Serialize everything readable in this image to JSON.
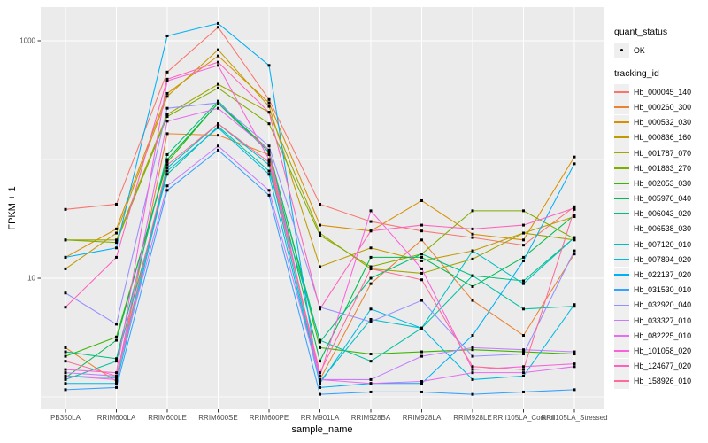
{
  "chart_data": {
    "type": "line",
    "title": "",
    "xlabel": "sample_name",
    "ylabel": "FPKM + 1",
    "y_scale": "log10",
    "ylim": [
      0.72,
      1870
    ],
    "grid": true,
    "legend_position": "right",
    "x_categories": [
      "PB350LA",
      "RRIM600LA",
      "RRIM600LE",
      "RRIM600SE",
      "RRIM600PE",
      "RRIM901LA",
      "RRIM928BA",
      "RRIM928LA",
      "RRIM928LE",
      "RRII105LA_Control",
      "RRII105LA_Stressed"
    ],
    "y_ticks": [
      {
        "label": "1000",
        "value": 1000
      },
      {
        "label": "10",
        "value": 10
      }
    ],
    "y_gridlines_major": [
      1000,
      10
    ],
    "y_gridlines_minor": [
      100,
      1
    ],
    "point_marker": {
      "shape": "square",
      "color": "#000000",
      "size": 3
    },
    "series": [
      {
        "name": "Hb_000045_140",
        "color": "#F8766D",
        "values": [
          38,
          42,
          545,
          1300,
          320,
          42,
          30,
          25,
          22,
          19,
          40
        ]
      },
      {
        "name": "Hb_000260_300",
        "color": "#EA8331",
        "values": [
          2.6,
          1.35,
          165,
          160,
          110,
          1.4,
          9,
          21,
          6.5,
          3.3,
          16
        ]
      },
      {
        "name": "Hb_000532_030",
        "color": "#D89000",
        "values": [
          15,
          26,
          360,
          745,
          300,
          28,
          25,
          45,
          23.5,
          21,
          105
        ]
      },
      {
        "name": "Hb_000836_160",
        "color": "#C09B00",
        "values": [
          12,
          24,
          340,
          840,
          280,
          12.5,
          18,
          14,
          17,
          24,
          33
        ]
      },
      {
        "name": "Hb_001787_070",
        "color": "#A3A500",
        "values": [
          21,
          21,
          240,
          430,
          250,
          24,
          12,
          11,
          14.5,
          24,
          21
        ]
      },
      {
        "name": "Hb_001863_270",
        "color": "#7CAE00",
        "values": [
          21,
          20,
          230,
          400,
          200,
          23,
          12.5,
          16,
          37,
          37,
          21.5
        ]
      },
      {
        "name": "Hb_002053_030",
        "color": "#39B600",
        "values": [
          2.2,
          3.2,
          95,
          300,
          120,
          2.6,
          2.3,
          2.4,
          2.5,
          2.4,
          2.3
        ]
      },
      {
        "name": "Hb_005976_040",
        "color": "#00BB4E",
        "values": [
          1.45,
          3,
          100,
          297,
          115,
          2,
          15,
          15,
          8.5,
          15,
          34
        ]
      },
      {
        "name": "Hb_006043_020",
        "color": "#00BF7D",
        "values": [
          2.4,
          2.1,
          110,
          310,
          115,
          2.9,
          10,
          16,
          10.5,
          9.5,
          22
        ]
      },
      {
        "name": "Hb_006538_030",
        "color": "#00C1A3",
        "values": [
          1.4,
          2,
          75,
          190,
          80,
          3,
          2,
          3.8,
          10.5,
          5.5,
          5.8
        ]
      },
      {
        "name": "Hb_007120_010",
        "color": "#00BFC4",
        "values": [
          1.5,
          1.45,
          85,
          200,
          90,
          1.35,
          4.5,
          3.8,
          17,
          9,
          22
        ]
      },
      {
        "name": "Hb_007894_020",
        "color": "#00BAE0",
        "values": [
          1.3,
          1.3,
          80,
          185,
          75,
          1.3,
          5.5,
          3.8,
          1.4,
          1.5,
          6
        ]
      },
      {
        "name": "Hb_022137_020",
        "color": "#00B0F6",
        "values": [
          15,
          18,
          1100,
          1400,
          620,
          1.2,
          1.3,
          1.3,
          3.3,
          14,
          92
        ]
      },
      {
        "name": "Hb_031530_010",
        "color": "#35A2FF",
        "values": [
          1.15,
          1.2,
          55,
          120,
          50,
          1.05,
          1.1,
          1.1,
          1.05,
          1.1,
          1.15
        ]
      },
      {
        "name": "Hb_032920_040",
        "color": "#9590FF",
        "values": [
          7.5,
          4.1,
          270,
          300,
          130,
          5.7,
          4.3,
          6.5,
          2.2,
          2.3,
          17
        ]
      },
      {
        "name": "Hb_033327_010",
        "color": "#C77CFF",
        "values": [
          1.6,
          1.5,
          60,
          130,
          55,
          1.4,
          1.4,
          2.2,
          2.6,
          2.5,
          2.4
        ]
      },
      {
        "name": "Hb_082225_010",
        "color": "#E76BF3",
        "values": [
          1.5,
          1.4,
          210,
          270,
          120,
          1.4,
          1.3,
          1.35,
          1.6,
          1.6,
          1.8
        ]
      },
      {
        "name": "Hb_101058_020",
        "color": "#FA62DB",
        "values": [
          1.7,
          1.6,
          460,
          620,
          100,
          1.5,
          37,
          12,
          1.7,
          1.8,
          1.9
        ]
      },
      {
        "name": "Hb_124677_020",
        "color": "#FF62BC",
        "values": [
          5.7,
          15,
          475,
          660,
          250,
          5.5,
          25,
          28,
          26,
          28,
          39
        ]
      },
      {
        "name": "Hb_158926_010",
        "color": "#FF6A98",
        "values": [
          2,
          1.5,
          90,
          200,
          95,
          1.6,
          12,
          9.7,
          1.8,
          1.7,
          38
        ]
      }
    ]
  },
  "legend": {
    "quant_status_title": "quant_status",
    "quant_status_items": [
      {
        "label": "OK"
      }
    ],
    "tracking_id_title": "tracking_id"
  },
  "colors": {
    "panel_bg": "#EBEBEB",
    "grid": "#FFFFFF",
    "tick_mark": "#333333",
    "tick_text": "#4d4d4d",
    "axis_title": "#000000",
    "legend_key_bg": "#EFEFEF",
    "point": "#000000"
  }
}
